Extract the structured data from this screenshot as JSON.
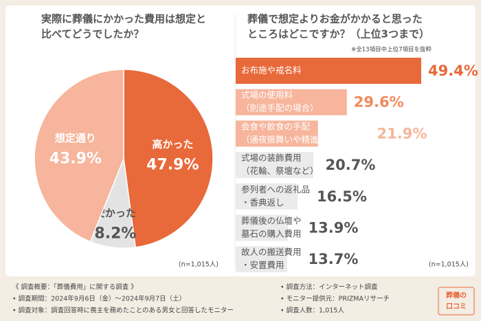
{
  "chart_data": [
    {
      "type": "pie",
      "title": [
        "実際に葬儀にかかった費用は想定と",
        "比べてどうでしたか？"
      ],
      "categories": [
        "高かった",
        "安かった",
        "想定通り"
      ],
      "values": [
        47.9,
        8.2,
        43.9
      ],
      "value_labels": [
        "47.9%",
        "8.2%",
        "43.9%"
      ],
      "colors": [
        "#e8693a",
        "#e3e3e3",
        "#f6b59c"
      ],
      "text_colors": [
        "#ffffff",
        "#555555",
        "#ffffff"
      ],
      "note": "(n=1,015人)"
    },
    {
      "type": "bar",
      "title": [
        "葬儀で想定よりお金がかかると思った",
        "ところはどこですか？（上位3つまで）"
      ],
      "subtitle": "※全13項目中上位7項目を抜粋",
      "categories": [
        [
          "お布施や戒名料"
        ],
        [
          "式場の使用料",
          "（別途手配の場合）"
        ],
        [
          "会食や飲食の手配",
          "（通夜振舞いや精進落としなど）"
        ],
        [
          "式場の装飾費用",
          "（花輪、祭壇など）"
        ],
        [
          "参列者への返礼品",
          "・香典返し"
        ],
        [
          "葬儀後の仏壇や",
          "墓石の購入費用"
        ],
        [
          "故人の搬送費用",
          "・安置費用"
        ]
      ],
      "values": [
        49.4,
        29.6,
        21.9,
        20.7,
        16.5,
        13.9,
        13.7
      ],
      "value_labels": [
        "49.4%",
        "29.6%",
        "21.9%",
        "20.7%",
        "16.5%",
        "13.9%",
        "13.7%"
      ],
      "colors": [
        "#e8693a",
        "#f6b59c",
        "#f6b59c",
        "#ebebeb",
        "#ebebeb",
        "#ebebeb",
        "#ebebeb"
      ],
      "text_colors": [
        "#ffffff",
        "#ffffff",
        "#ffffff",
        "#555555",
        "#555555",
        "#555555",
        "#555555"
      ],
      "label_colors": [
        "#e8693a",
        "#f08a5d",
        "#f6b59c",
        "#555555",
        "#555555",
        "#555555",
        "#555555"
      ],
      "note": "(n=1,015人)"
    }
  ],
  "footer": {
    "left": [
      "《 調査概要：「葬儀費用」に関する調査 》",
      "• 調査期間：2024年9月6日（金）～2024年9月7日（土）",
      "• 調査対象：調査回答時に喪主を務めたことのある男女と回答したモニター"
    ],
    "right": [
      "• 調査方法：インターネット調査",
      "• モニター提供元：PRIZMAリサーチ",
      "• 調査人数：1,015人"
    ],
    "logo": [
      "葬儀の",
      "口コミ"
    ]
  }
}
